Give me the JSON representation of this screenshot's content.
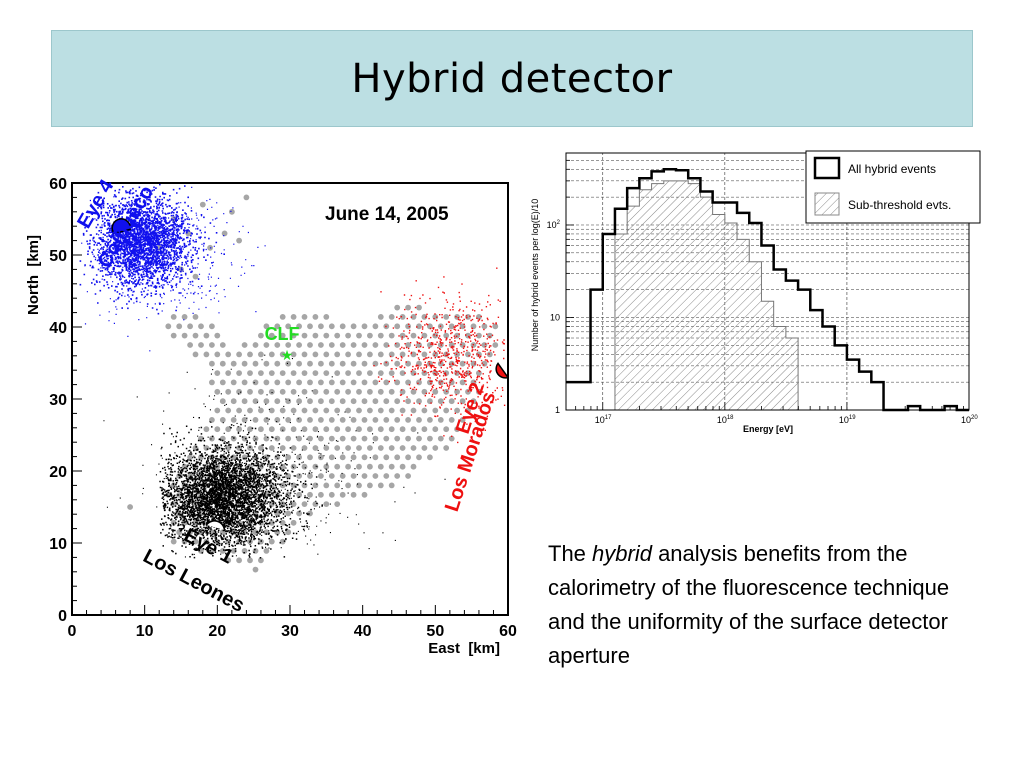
{
  "slide": {
    "title": "Hybrid detector",
    "caption": {
      "prefix": "The ",
      "emphasis": "hybrid",
      "rest": " analysis benefits from the calorimetry of the fluorescence technique and the uniformity of the surface detector aperture"
    }
  },
  "chart_data": [
    {
      "type": "scatter",
      "title": "June 14, 2005",
      "xlabel": "East  [km]",
      "ylabel": "North  [km]",
      "xlim": [
        0,
        60
      ],
      "ylim": [
        0,
        60
      ],
      "xticks": [
        "0",
        "10",
        "20",
        "30",
        "40",
        "50",
        "60"
      ],
      "yticks": [
        "0",
        "10",
        "20",
        "30",
        "40",
        "50",
        "60"
      ],
      "grid": false,
      "colors": {
        "eye4": "#1010ee",
        "eye2": "#ee1010",
        "eye1": "#000000",
        "clf": "#22dd22",
        "array": "#a6a6a6"
      },
      "annotations": [
        {
          "name": "eye-4",
          "lines": [
            "Eye 4",
            "Coihueco"
          ],
          "x": 6,
          "y": 53,
          "color": "#1010ee"
        },
        {
          "name": "eye-2",
          "lines": [
            "Eye 2",
            "Los Morados"
          ],
          "x": 59,
          "y": 34,
          "color": "#ee1010"
        },
        {
          "name": "eye-1",
          "lines": [
            "Eye 1",
            "Los Leones"
          ],
          "x": 20,
          "y": 12,
          "color": "#000000"
        },
        {
          "name": "clf",
          "lines": [
            "CLF"
          ],
          "x": 30,
          "y": 36,
          "color": "#22dd22"
        }
      ]
    },
    {
      "type": "line",
      "xlabel": "Energy [eV]",
      "ylabel": "Number of hybrid events per log(E)/10",
      "xscale": "log",
      "yscale": "log",
      "xlim": [
        5e+16,
        1e+20
      ],
      "ylim": [
        1,
        600
      ],
      "xticks": [
        {
          "base": "10",
          "exp": "17"
        },
        {
          "base": "10",
          "exp": "18"
        },
        {
          "base": "10",
          "exp": "19"
        },
        {
          "base": "10",
          "exp": "20"
        }
      ],
      "yticks": [
        {
          "base": "1",
          "exp": ""
        },
        {
          "base": "10",
          "exp": ""
        },
        {
          "base": "10",
          "exp": "2"
        }
      ],
      "grid": true,
      "legend": "top-right",
      "bin_edges_log10": [
        16.7,
        16.9,
        17.0,
        17.1,
        17.2,
        17.3,
        17.4,
        17.5,
        17.6,
        17.7,
        17.8,
        17.9,
        18.0,
        18.1,
        18.2,
        18.3,
        18.4,
        18.5,
        18.6,
        18.7,
        18.8,
        18.9,
        19.0,
        19.1,
        19.2,
        19.3,
        19.4,
        19.5,
        19.6,
        19.7,
        19.8,
        19.9,
        20.0
      ],
      "series": [
        {
          "name": "All hybrid events",
          "style": "step-black",
          "values": [
            2,
            20,
            80,
            150,
            250,
            320,
            380,
            400,
            390,
            320,
            230,
            175,
            175,
            135,
            105,
            60,
            33,
            25,
            20,
            12,
            8,
            5,
            3.5,
            2.6,
            2,
            1,
            1,
            1.1,
            1,
            1,
            1.1,
            1
          ]
        },
        {
          "name": "Sub-threshold evts.",
          "style": "hatched",
          "values": [
            0,
            0,
            0,
            80,
            160,
            240,
            280,
            300,
            300,
            280,
            200,
            130,
            105,
            70,
            40,
            15,
            8,
            6,
            0,
            0,
            0,
            0,
            0,
            0,
            0,
            0,
            0,
            0,
            0,
            0,
            0,
            0
          ]
        }
      ]
    }
  ]
}
